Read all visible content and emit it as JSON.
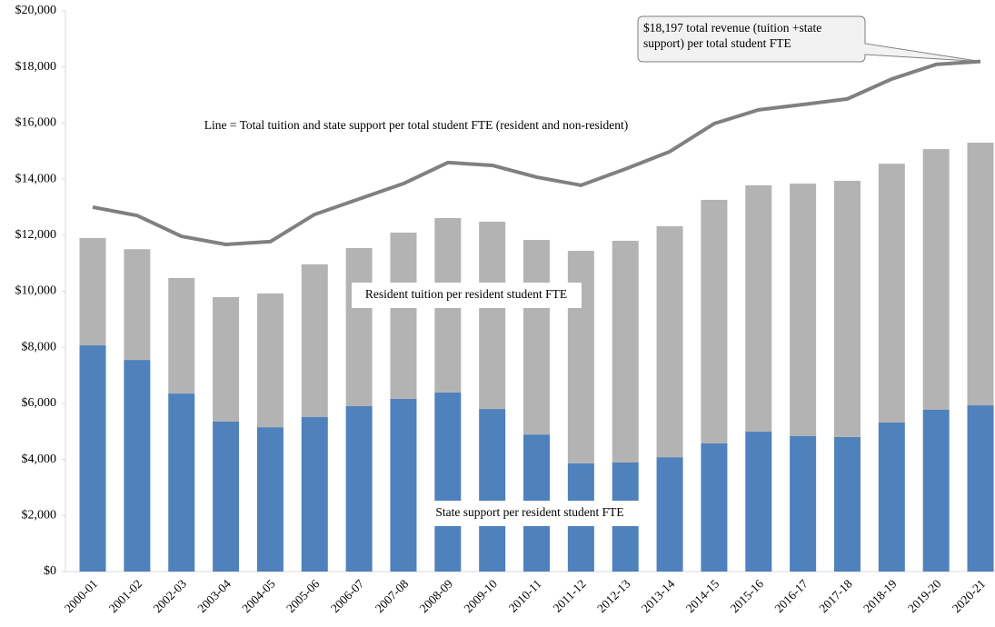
{
  "chart_data": {
    "type": "stacked_bar_line",
    "categories": [
      "2000-01",
      "2001-02",
      "2002-03",
      "2003-04",
      "2004-05",
      "2005-06",
      "2006-07",
      "2007-08",
      "2008-09",
      "2009-10",
      "2010-11",
      "2011-12",
      "2012-13",
      "2013-14",
      "2014-15",
      "2015-16",
      "2016-17",
      "2017-18",
      "2018-19",
      "2019-20",
      "2020-21"
    ],
    "series": [
      {
        "name": "State support per resident student FTE",
        "color": "#4f81bd",
        "values": [
          8070,
          7550,
          6350,
          5350,
          5150,
          5510,
          5900,
          6160,
          6390,
          5800,
          4890,
          3860,
          3890,
          4080,
          4570,
          4990,
          4830,
          4800,
          5320,
          5770,
          5930
        ]
      },
      {
        "name": "Resident tuition per resident student FTE",
        "color": "#b3b3b3",
        "values": [
          3830,
          3950,
          4120,
          4440,
          4770,
          5450,
          5640,
          5930,
          6220,
          6680,
          6940,
          7580,
          7910,
          8240,
          8690,
          8790,
          9010,
          9140,
          9230,
          9300,
          9370
        ]
      },
      {
        "name": "Line = Total tuition and state support per total student FTE (resident and non-resident)",
        "color": "#808080",
        "type": "line",
        "values": [
          13000,
          12700,
          11960,
          11670,
          11770,
          12740,
          13290,
          13840,
          14590,
          14490,
          14070,
          13780,
          14360,
          14980,
          15980,
          16470,
          16660,
          16860,
          17570,
          18090,
          18197
        ]
      }
    ],
    "annotation": "$18,197 total revenue (tuition +state support) per total student FTE",
    "ylim": [
      0,
      20000
    ],
    "yticks": [
      {
        "value": 0,
        "label": "$0"
      },
      {
        "value": 2000,
        "label": "$2,000"
      },
      {
        "value": 4000,
        "label": "$4,000"
      },
      {
        "value": 6000,
        "label": "$6,000"
      },
      {
        "value": 8000,
        "label": "$8,000"
      },
      {
        "value": 10000,
        "label": "$10,000"
      },
      {
        "value": 12000,
        "label": "$12,000"
      },
      {
        "value": 14000,
        "label": "$14,000"
      },
      {
        "value": 16000,
        "label": "$16,000"
      },
      {
        "value": 18000,
        "label": "$18,000"
      },
      {
        "value": 20000,
        "label": "$20,000"
      }
    ],
    "grid": false
  }
}
